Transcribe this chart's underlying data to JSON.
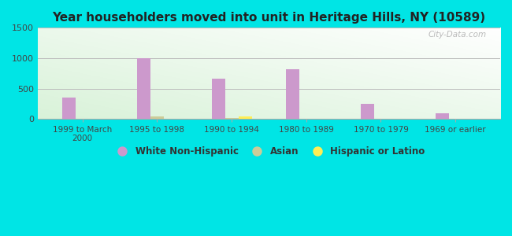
{
  "title": "Year householders moved into unit in Heritage Hills, NY (10589)",
  "categories": [
    "1999 to March\n2000",
    "1995 to 1998",
    "1990 to 1994",
    "1980 to 1989",
    "1970 to 1979",
    "1969 or earlier"
  ],
  "white_non_hispanic": [
    350,
    1005,
    670,
    820,
    245,
    95
  ],
  "asian": [
    10,
    45,
    20,
    0,
    0,
    0
  ],
  "hispanic_or_latino": [
    10,
    10,
    50,
    0,
    0,
    0
  ],
  "bar_width": 0.18,
  "ylim": [
    0,
    1500
  ],
  "yticks": [
    0,
    500,
    1000,
    1500
  ],
  "colors": {
    "white_non_hispanic": "#cc99cc",
    "asian": "#cccc99",
    "hispanic_or_latino": "#ffee55"
  },
  "background_outer": "#00e5e5",
  "background_plot_topleft": "#d8eed8",
  "background_plot_topright": "#ffffff",
  "background_plot_bottom": "#c8eee8",
  "watermark": "City-Data.com",
  "legend_labels": [
    "White Non-Hispanic",
    "Asian",
    "Hispanic or Latino"
  ]
}
